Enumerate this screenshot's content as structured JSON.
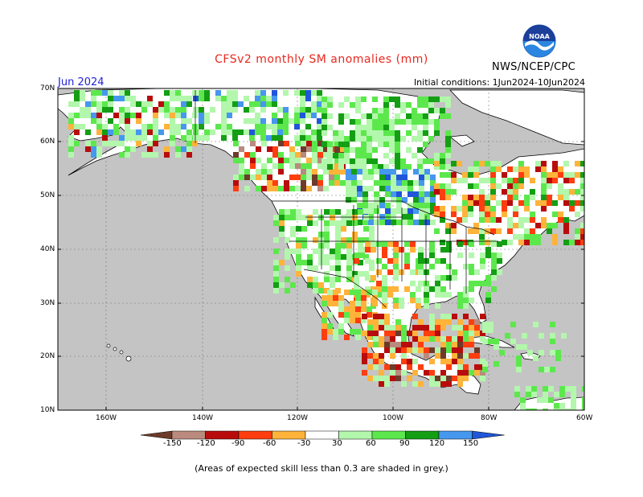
{
  "header": {
    "title": "CFSv2 monthly SM anomalies (mm)",
    "month": "Jun 2024",
    "agency": "NWS/NCEP/CPC",
    "logo_text": "NOAA",
    "initial_conditions": "Initial conditions: 1Jun2024-10Jun2024"
  },
  "map": {
    "region": "North America",
    "grey_color": "#c4c4c4",
    "land_color": "#ffffff",
    "lat_labels": [
      "70N",
      "60N",
      "50N",
      "40N",
      "30N",
      "20N",
      "10N"
    ],
    "lon_labels": [
      "160W",
      "140W",
      "120W",
      "100W",
      "80W",
      "60W"
    ],
    "lat_values": [
      70,
      60,
      50,
      40,
      30,
      20,
      10
    ],
    "lon_values": [
      -160,
      -140,
      -120,
      -100,
      -80,
      -60
    ]
  },
  "colorbar": {
    "labels": [
      "-150",
      "-120",
      "-90",
      "-60",
      "-30",
      "30",
      "60",
      "90",
      "120",
      "150"
    ],
    "colors": [
      "#6e3b2b",
      "#b98a7d",
      "#b80c0c",
      "#ff3d0f",
      "#ffb33a",
      "#ffffff",
      "#b2f7ac",
      "#5ce84c",
      "#149e14",
      "#4697ee",
      "#2056d8"
    ]
  },
  "footnote": "(Areas of expected skill less than 0.3 are shaded in grey.)"
}
